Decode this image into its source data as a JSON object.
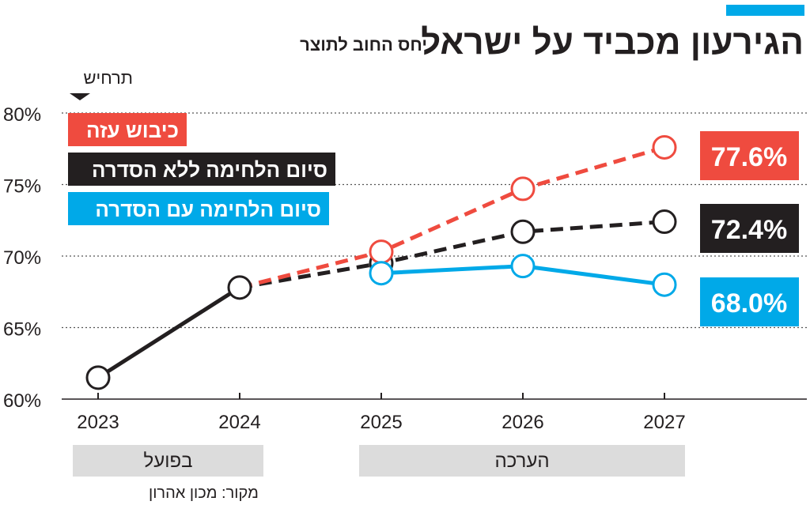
{
  "header": {
    "title": "הגירעון מכביד על ישראל",
    "subtitle": "יחס החוב לתוצר",
    "accent_color": "#00a9e8"
  },
  "scenario_label": "תרחיש",
  "source": "מקור: מכון אהרון",
  "chart_data": {
    "type": "line",
    "title": "הגירעון מכביד על ישראל",
    "subtitle": "יחס החוב לתוצר",
    "x": [
      "2023",
      "2024",
      "2025",
      "2026",
      "2027"
    ],
    "ylim": [
      60,
      80
    ],
    "yticks": [
      60,
      65,
      70,
      75,
      80
    ],
    "ytick_labels": [
      "60%",
      "65%",
      "70%",
      "75%",
      "80%"
    ],
    "grid": true,
    "actual": {
      "name": "בפועל",
      "x": [
        "2023",
        "2024"
      ],
      "values": [
        61.5,
        67.8
      ],
      "color": "#231f20"
    },
    "series": [
      {
        "name": "כיבוש עזה",
        "color": "#ef4b3f",
        "dashed": true,
        "x": [
          "2024",
          "2025",
          "2026",
          "2027"
        ],
        "values": [
          67.8,
          70.3,
          74.7,
          77.6
        ],
        "end_label": "77.6%"
      },
      {
        "name": "סיום הלחימה ללא הסדרה",
        "color": "#231f20",
        "dashed": true,
        "x": [
          "2024",
          "2025",
          "2026",
          "2027"
        ],
        "values": [
          67.8,
          69.5,
          71.7,
          72.4
        ],
        "end_label": "72.4%"
      },
      {
        "name": "סיום הלחימה עם הסדרה",
        "color": "#00a9e8",
        "dashed": false,
        "x": [
          "2025",
          "2026",
          "2027"
        ],
        "values": [
          68.8,
          69.3,
          68.0
        ],
        "end_label": "68.0%"
      }
    ],
    "periods": [
      {
        "label": "בפועל",
        "from": "2023",
        "to": "2024"
      },
      {
        "label": "הערכה",
        "from": "2025",
        "to": "2027"
      }
    ]
  }
}
